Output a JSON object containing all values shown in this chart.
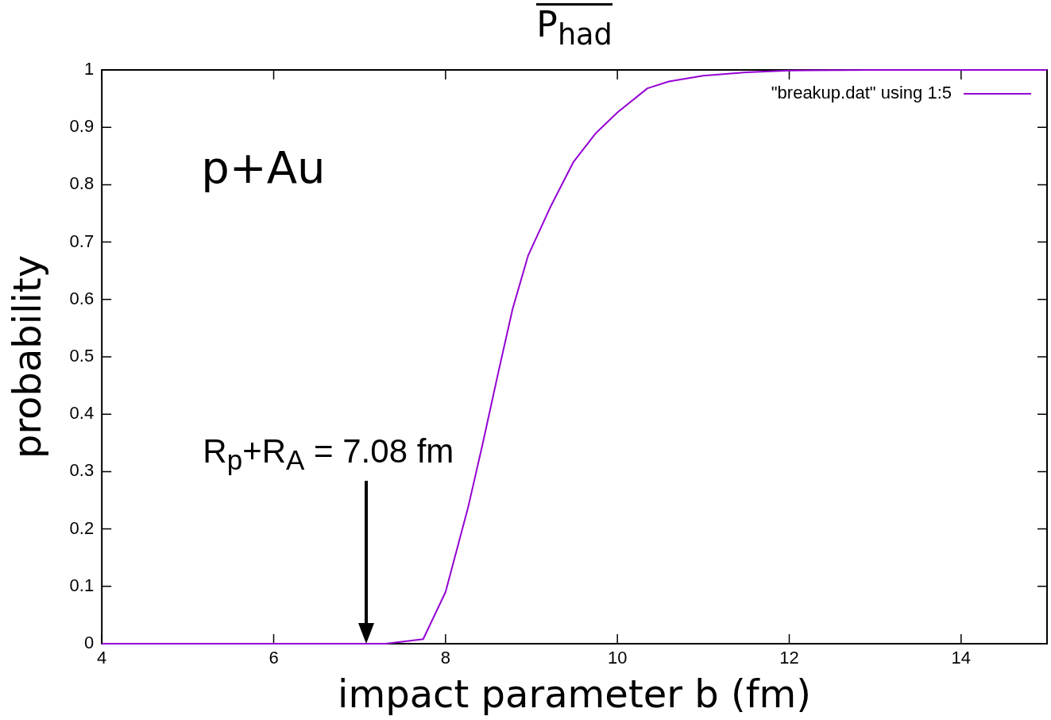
{
  "chart_data": {
    "type": "line",
    "title": "P$_{had}$",
    "xlabel": "impact parameter b (fm)",
    "ylabel": "probability",
    "annotations": [
      "p+Au",
      "R$_{p}$+R$_{A}$ = 7.08 fm"
    ],
    "xlim": [
      4,
      15
    ],
    "xticks": [
      4,
      6,
      8,
      10,
      12,
      14
    ],
    "ylim": [
      0,
      1
    ],
    "yticks": [
      0,
      0.1,
      0.2,
      0.3,
      0.4,
      0.5,
      0.6,
      0.7,
      0.8,
      0.9,
      1
    ],
    "grid": false,
    "legend": "top right",
    "marker": "none",
    "line_style": "solid",
    "series": [
      {
        "name": "\"breakup.dat\" using 1:5",
        "color": "#9400d3",
        "x": [
          4,
          7.2,
          7.3,
          7.74,
          8.0,
          8.26,
          8.43,
          8.61,
          8.78,
          8.96,
          9.22,
          9.49,
          9.75,
          10.0,
          10.35,
          10.6,
          11,
          11.5,
          12,
          13,
          15
        ],
        "values": [
          0,
          0,
          0,
          0.008,
          0.09,
          0.236,
          0.347,
          0.47,
          0.583,
          0.676,
          0.761,
          0.84,
          0.89,
          0.926,
          0.968,
          0.98,
          0.99,
          0.996,
          0.999,
          1,
          1
        ]
      }
    ]
  }
}
